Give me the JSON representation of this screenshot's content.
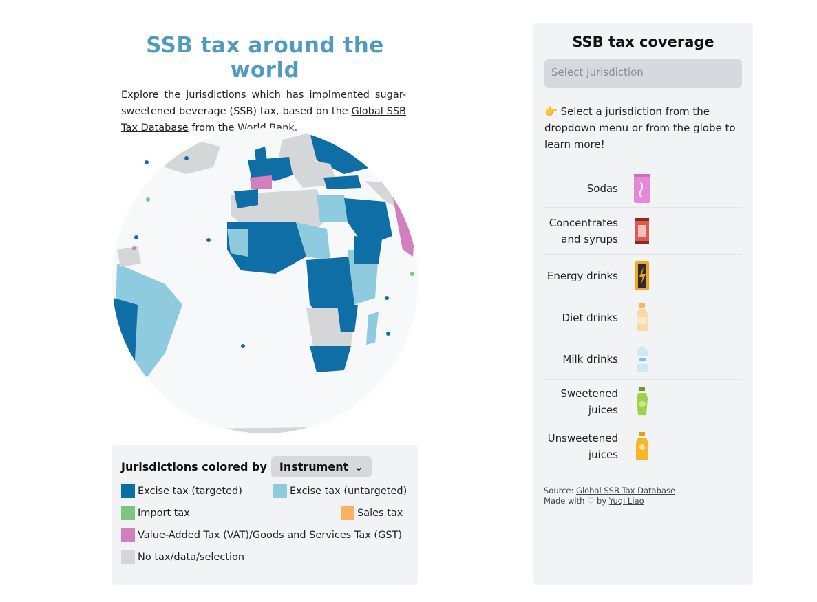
{
  "header": {
    "title": "SSB tax around the world",
    "intro_before": "Explore the jurisdictions which has implmented sugar-sweetened beverage (SSB) tax, based on the ",
    "intro_link": "Global SSB Tax Database",
    "intro_after": " from the World Bank."
  },
  "legend": {
    "heading": "Jurisdictions colored by",
    "select_value": "Instrument",
    "items": [
      {
        "label": "Excise tax (targeted)",
        "color": "#0f6ea5"
      },
      {
        "label": "Excise tax (untargeted)",
        "color": "#8fcbde"
      },
      {
        "label": "Import tax",
        "color": "#7cc47f"
      },
      {
        "label": "Sales tax",
        "color": "#f6b263"
      },
      {
        "label": "Value-Added Tax (VAT)/Goods and Services Tax (GST)",
        "color": "#d27fbb"
      },
      {
        "label": "No tax/data/selection",
        "color": "#d4d6d8"
      }
    ]
  },
  "panel": {
    "title": "SSB tax coverage",
    "select_placeholder": "Select Jurisdiction",
    "hint": "👉 Select a jurisdiction from the dropdown menu or from the globe to learn more!",
    "drinks": [
      {
        "label": "Sodas",
        "icon": "soda-can-icon",
        "color": "#e887d6"
      },
      {
        "label": "Concentrates and syrups",
        "icon": "syrup-packet-icon",
        "color": "#e0584f"
      },
      {
        "label": "Energy drinks",
        "icon": "energy-can-icon",
        "color": "#f4a623"
      },
      {
        "label": "Diet drinks",
        "icon": "diet-bottle-icon",
        "color": "#f9d9a6"
      },
      {
        "label": "Milk drinks",
        "icon": "milk-carton-icon",
        "color": "#cfe9f5"
      },
      {
        "label": "Sweetened juices",
        "icon": "juice-bottle-icon",
        "color": "#9bd24a"
      },
      {
        "label": "Unsweetened juices",
        "icon": "orange-juice-icon",
        "color": "#f7b52c"
      }
    ],
    "source_prefix": "Source: ",
    "source_link": "Global SSB Tax Database",
    "made_prefix": "Made with ♡ by ",
    "made_link": "Yuqi Liao"
  }
}
